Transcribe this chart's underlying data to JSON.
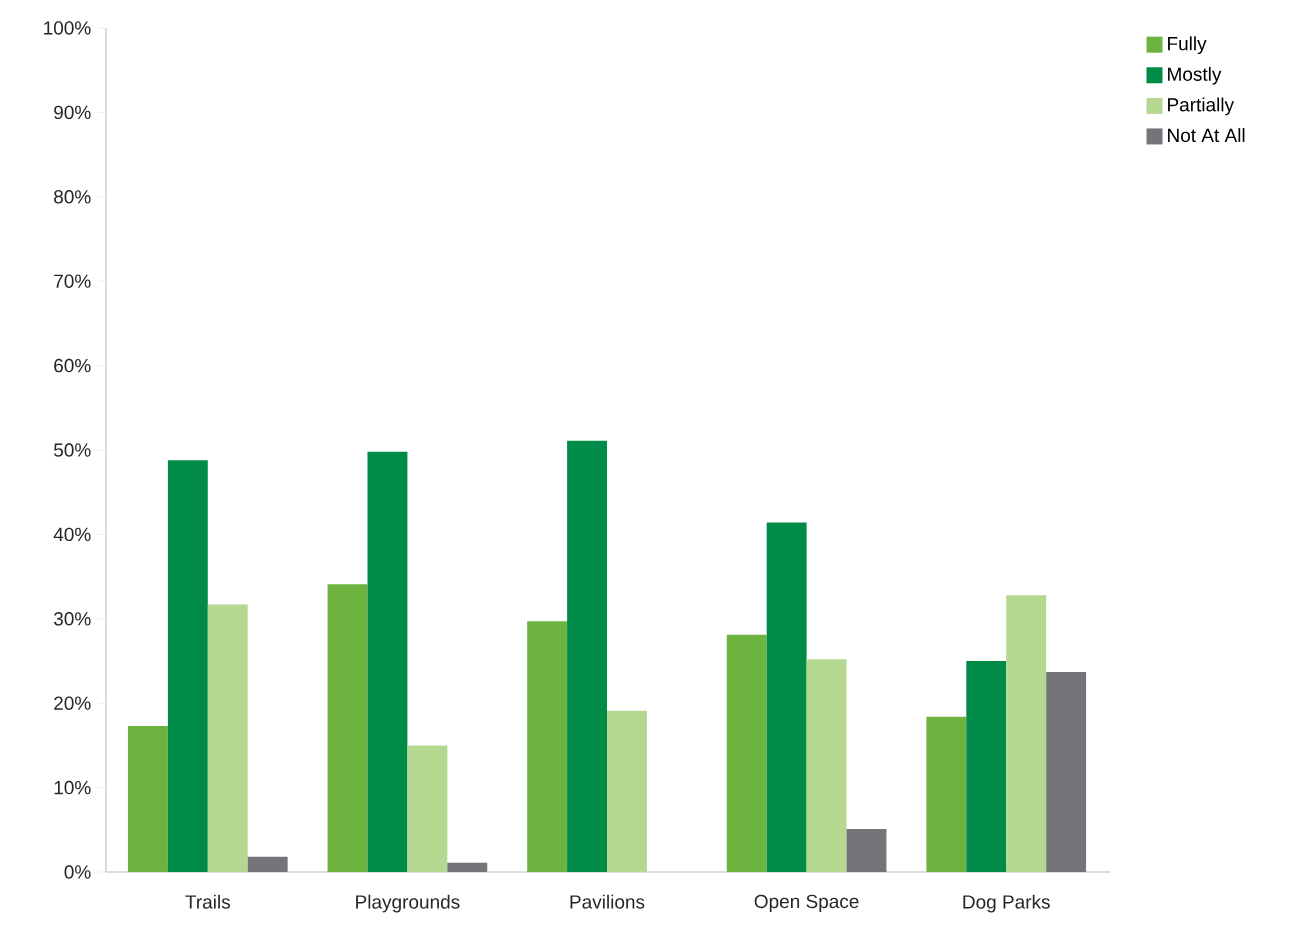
{
  "chart_data": {
    "type": "bar",
    "categories": [
      "Trails",
      "Playgrounds",
      "Pavilions",
      "Open Space",
      "Dog Parks"
    ],
    "series": [
      {
        "name": "Fully",
        "color": "#6db33f",
        "values": [
          17.3,
          34.1,
          29.7,
          28.1,
          18.4
        ]
      },
      {
        "name": "Mostly",
        "color": "#008c48",
        "values": [
          48.8,
          49.8,
          51.1,
          41.4,
          25.0
        ]
      },
      {
        "name": "Partially",
        "color": "#b5d890",
        "values": [
          31.7,
          15.0,
          19.1,
          25.2,
          32.8
        ]
      },
      {
        "name": "Not At All",
        "color": "#747578",
        "values": [
          1.8,
          1.1,
          null,
          5.1,
          23.7
        ]
      }
    ],
    "ylim": [
      0,
      100
    ],
    "yticks": [
      {
        "value": 0,
        "label": "0%"
      },
      {
        "value": 10,
        "label": "10%"
      },
      {
        "value": 20,
        "label": "20%"
      },
      {
        "value": 30,
        "label": "30%"
      },
      {
        "value": 40,
        "label": "40%"
      },
      {
        "value": 50,
        "label": "50%"
      },
      {
        "value": 60,
        "label": "60%"
      },
      {
        "value": 70,
        "label": "70%"
      },
      {
        "value": 80,
        "label": "80%"
      },
      {
        "value": 90,
        "label": "90%"
      },
      {
        "value": 100,
        "label": "100%"
      }
    ],
    "grid": false,
    "legend": "top right"
  }
}
